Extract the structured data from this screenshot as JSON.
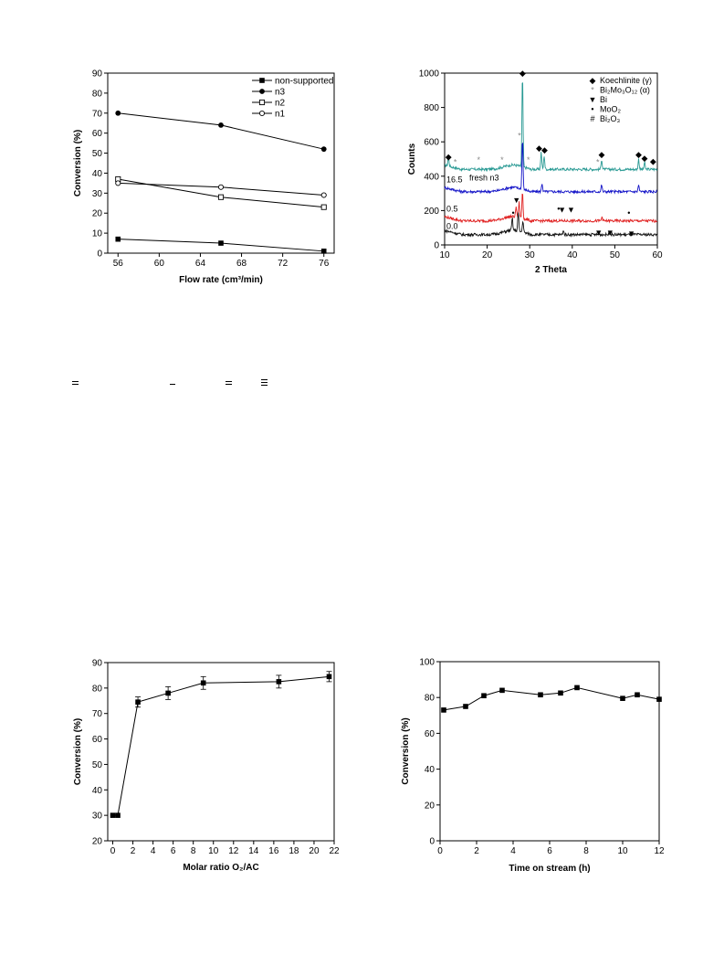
{
  "chart_data": [
    {
      "type": "line",
      "xlabel": "Flow rate (cm³/min)",
      "ylabel": "Conversion (%)",
      "xlim": [
        55,
        77
      ],
      "ylim": [
        0,
        90
      ],
      "xticks": [
        56,
        60,
        64,
        68,
        72,
        76
      ],
      "yticks": [
        0,
        10,
        20,
        30,
        40,
        50,
        60,
        70,
        80,
        90
      ],
      "legend_position": "top-right",
      "series": [
        {
          "name": "non-supported",
          "marker": "square-filled",
          "x": [
            56,
            66,
            76
          ],
          "y": [
            7,
            5,
            1
          ]
        },
        {
          "name": "n3",
          "marker": "circle-filled",
          "x": [
            56,
            66,
            76
          ],
          "y": [
            70,
            64,
            52
          ]
        },
        {
          "name": "n2",
          "marker": "square-open",
          "x": [
            56,
            66,
            76
          ],
          "y": [
            37,
            28,
            23
          ]
        },
        {
          "name": "n1",
          "marker": "circle-open",
          "x": [
            56,
            66,
            76
          ],
          "y": [
            35,
            33,
            29
          ]
        }
      ]
    },
    {
      "type": "line",
      "xlabel": "2 Theta",
      "ylabel": "Counts",
      "xlim": [
        10,
        60
      ],
      "ylim": [
        0,
        1000
      ],
      "xticks": [
        10,
        20,
        30,
        40,
        50,
        60
      ],
      "yticks": [
        0,
        200,
        400,
        600,
        800,
        1000
      ],
      "legend_position": "top-right",
      "legend": [
        {
          "symbol": "◆",
          "text": "Koechlinite (γ)"
        },
        {
          "symbol": "*",
          "text": "Bi₂Mo₃O₁₂ (α)"
        },
        {
          "symbol": "▼",
          "text": "Bi"
        },
        {
          "symbol": "•",
          "text": "MoO₂"
        },
        {
          "symbol": "#",
          "text": "Bi₂O₃"
        }
      ],
      "series": [
        {
          "name": "fresh n3",
          "color": "#2a9a94",
          "baseline": 440,
          "label": "fresh n3",
          "peaks": [
            [
              10.9,
              60
            ],
            [
              28.3,
              540
            ],
            [
              32.7,
              100
            ],
            [
              33.4,
              80
            ],
            [
              46.9,
              60
            ],
            [
              55.6,
              60
            ],
            [
              57.0,
              40
            ]
          ]
        },
        {
          "name": "16.5",
          "color": "#1414c8",
          "baseline": 310,
          "label": "16.5",
          "peaks": [
            [
              28.3,
              300
            ],
            [
              32.9,
              50
            ],
            [
              46.9,
              40
            ],
            [
              55.6,
              40
            ]
          ]
        },
        {
          "name": "0.5",
          "color": "#e02020",
          "baseline": 140,
          "label": "0.5",
          "peaks": [
            [
              26.8,
              60
            ],
            [
              27.5,
              90
            ],
            [
              28.3,
              160
            ],
            [
              47.0,
              25
            ]
          ]
        },
        {
          "name": "0.0",
          "color": "#111111",
          "baseline": 60,
          "label": "0.0",
          "peaks": [
            [
              25.9,
              70
            ],
            [
              27.3,
              110
            ],
            [
              28.4,
              70
            ],
            [
              37.9,
              25
            ],
            [
              48.8,
              15
            ]
          ]
        }
      ]
    },
    {
      "type": "scatter",
      "xlabel": "Molar ratio O₂/AC",
      "ylabel": "Conversion (%)",
      "xlim": [
        -0.5,
        22
      ],
      "ylim": [
        20,
        90
      ],
      "xticks": [
        0,
        2,
        4,
        6,
        8,
        10,
        12,
        14,
        16,
        18,
        20,
        22
      ],
      "yticks": [
        20,
        30,
        40,
        50,
        60,
        70,
        80,
        90
      ],
      "series": [
        {
          "marker": "square-filled",
          "x": [
            0,
            0.5,
            2.5,
            5.5,
            9,
            16.5,
            21.5
          ],
          "y": [
            30,
            30,
            74.5,
            78,
            82,
            82.5,
            84.5
          ],
          "err": [
            0,
            0,
            2,
            2.5,
            2.5,
            2.5,
            2
          ]
        }
      ]
    },
    {
      "type": "line",
      "xlabel": "Time on stream (h)",
      "ylabel": "Conversion (%)",
      "xlim": [
        0,
        12
      ],
      "ylim": [
        0,
        100
      ],
      "xticks": [
        0,
        2,
        4,
        6,
        8,
        10,
        12
      ],
      "yticks": [
        0,
        20,
        40,
        60,
        80,
        100
      ],
      "series": [
        {
          "marker": "square-filled",
          "x": [
            0.2,
            1.4,
            2.4,
            3.4,
            5.5,
            6.6,
            7.5,
            10.0,
            10.8,
            12.0
          ],
          "y": [
            73,
            75,
            81,
            84,
            81.5,
            82.5,
            85.5,
            79.5,
            81.5,
            79
          ]
        }
      ]
    }
  ]
}
